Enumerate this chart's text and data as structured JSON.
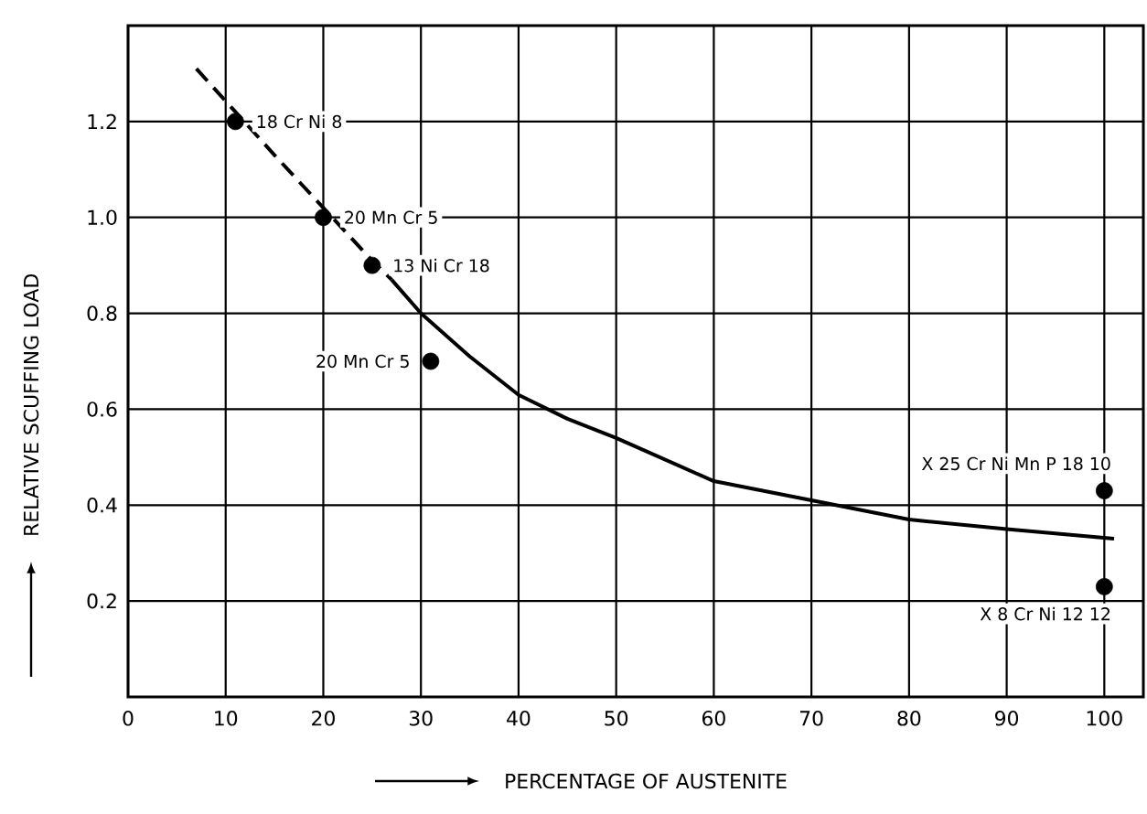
{
  "chart_data": {
    "type": "scatter",
    "xlabel": "PERCENTAGE OF AUSTENITE",
    "ylabel": "RELATIVE SCUFFING LOAD",
    "xlim": [
      0,
      104
    ],
    "ylim": [
      0,
      1.4
    ],
    "xticks": [
      0,
      10,
      20,
      30,
      40,
      50,
      60,
      70,
      80,
      90,
      100
    ],
    "yticks": [
      {
        "value": 0,
        "label": null
      },
      0.2,
      0.4,
      0.6,
      0.8,
      {
        "value": 1.0,
        "label": "1.0"
      },
      1.2,
      {
        "value": 1.4,
        "label": null
      }
    ],
    "grid": true,
    "series": [
      {
        "color": "#000000",
        "marker": "circle",
        "x": [
          11,
          20,
          25,
          31,
          100,
          100
        ],
        "values": [
          1.2,
          1.0,
          0.9,
          0.7,
          0.43,
          0.23
        ]
      },
      {
        "type": "line",
        "color": "#000000",
        "line_style": "dashed",
        "x": [
          7,
          11,
          15,
          20,
          25,
          27
        ],
        "values": [
          1.31,
          1.22,
          1.13,
          1.02,
          0.91,
          0.87
        ]
      },
      {
        "type": "line",
        "color": "#000000",
        "line_style": "solid",
        "x": [
          27,
          30,
          35,
          40,
          45,
          50,
          60,
          70,
          80,
          90,
          101
        ],
        "values": [
          0.87,
          0.8,
          0.71,
          0.63,
          0.58,
          0.54,
          0.45,
          0.41,
          0.37,
          0.35,
          0.33
        ]
      }
    ],
    "annotations": [
      {
        "text": "18 Cr Ni 8",
        "x": 11,
        "y": 1.2
      },
      {
        "text": "20 Mn Cr 5",
        "x": 20,
        "y": 1.0
      },
      {
        "text": "13 Ni Cr 18",
        "x": 25,
        "y": 0.9
      },
      {
        "text": "20 Mn Cr 5",
        "x": 31,
        "y": 0.7
      },
      {
        "text": "X 25 Cr Ni Mn P 18 10",
        "x": 100,
        "y": 0.43
      },
      {
        "text": "X 8 Cr Ni 12 12",
        "x": 100,
        "y": 0.23
      }
    ]
  }
}
